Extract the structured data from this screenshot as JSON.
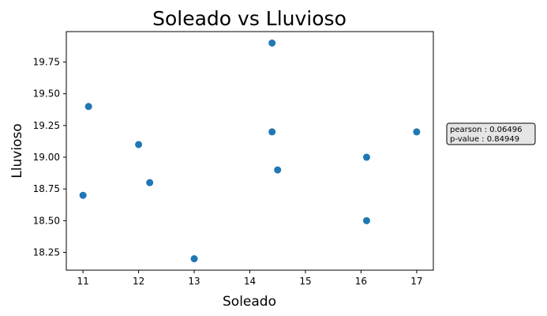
{
  "chart_data": {
    "type": "scatter",
    "title": "Soleado vs Lluvioso",
    "xlabel": "Soleado",
    "ylabel": "Lluvioso",
    "xlim": [
      10.7,
      17.3
    ],
    "ylim": [
      18.11,
      19.99
    ],
    "xticks": [
      11,
      12,
      13,
      14,
      15,
      16,
      17
    ],
    "yticks": [
      18.25,
      18.5,
      18.75,
      19.0,
      19.25,
      19.5,
      19.75
    ],
    "xtick_labels": [
      "11",
      "12",
      "13",
      "14",
      "15",
      "16",
      "17"
    ],
    "ytick_labels": [
      "18.25",
      "18.50",
      "18.75",
      "19.00",
      "19.25",
      "19.50",
      "19.75"
    ],
    "grid": false,
    "marker_color": "#1f77b4",
    "points": [
      {
        "x": 11.0,
        "y": 18.7
      },
      {
        "x": 11.1,
        "y": 19.4
      },
      {
        "x": 12.0,
        "y": 19.1
      },
      {
        "x": 12.2,
        "y": 18.8
      },
      {
        "x": 13.0,
        "y": 18.2
      },
      {
        "x": 14.4,
        "y": 19.9
      },
      {
        "x": 14.4,
        "y": 19.2
      },
      {
        "x": 14.5,
        "y": 18.9
      },
      {
        "x": 16.1,
        "y": 19.0
      },
      {
        "x": 16.1,
        "y": 18.5
      },
      {
        "x": 17.0,
        "y": 19.2
      }
    ],
    "annotation": {
      "line1": "pearson : 0.06496",
      "line2": "p-value : 0.84949"
    }
  }
}
